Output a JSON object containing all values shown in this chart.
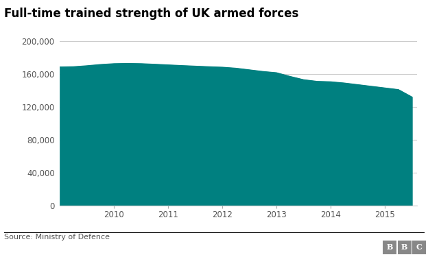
{
  "title": "Full-time trained strength of UK armed forces",
  "source": "Source: Ministry of Defence",
  "fill_color": "#008080",
  "line_color": "#008080",
  "background_color": "#ffffff",
  "grid_color": "#cccccc",
  "x_data": [
    2009.0,
    2009.25,
    2009.5,
    2009.75,
    2010.0,
    2010.25,
    2010.5,
    2010.75,
    2011.0,
    2011.25,
    2011.5,
    2011.75,
    2012.0,
    2012.25,
    2012.5,
    2012.75,
    2013.0,
    2013.25,
    2013.5,
    2013.75,
    2014.0,
    2014.25,
    2014.5,
    2014.75,
    2015.0,
    2015.25,
    2015.5
  ],
  "y_data": [
    168500,
    168800,
    170000,
    171500,
    172500,
    172800,
    172500,
    171800,
    171000,
    170200,
    169500,
    168800,
    168200,
    167000,
    165000,
    163000,
    161500,
    157000,
    153000,
    151000,
    150500,
    149000,
    147000,
    145000,
    143000,
    141000,
    132000
  ],
  "ylim": [
    0,
    200000
  ],
  "yticks": [
    0,
    40000,
    80000,
    120000,
    160000,
    200000
  ],
  "xlim": [
    2009.0,
    2015.6
  ],
  "xticks": [
    2010,
    2011,
    2012,
    2013,
    2014,
    2015
  ],
  "title_fontsize": 12,
  "tick_fontsize": 8.5,
  "source_fontsize": 8,
  "bbc_label": "BBC",
  "bbc_bg_color": "#888888",
  "bbc_text_color": "#ffffff",
  "footer_line_color": "#000000"
}
